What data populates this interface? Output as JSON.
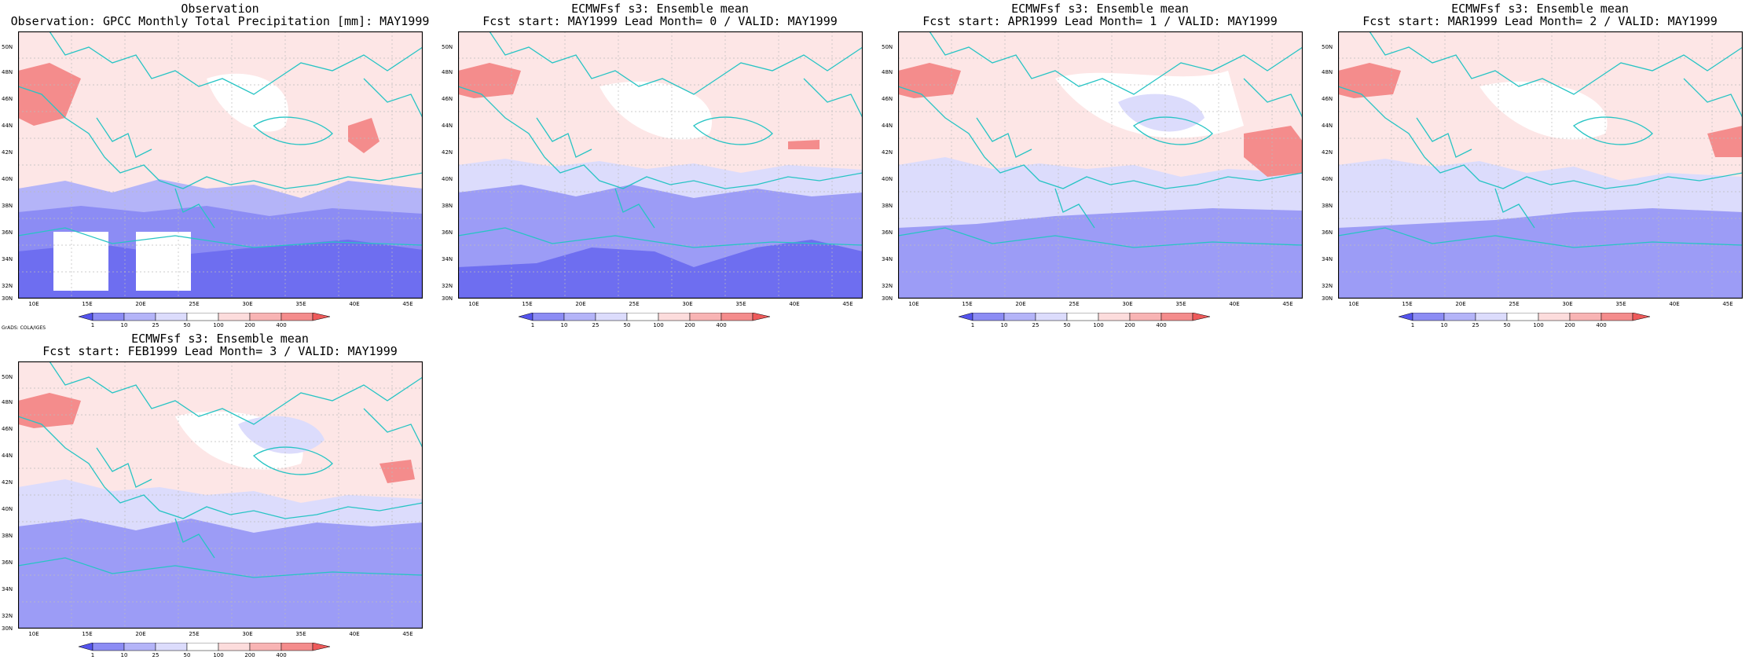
{
  "panels": [
    {
      "title1": "Observation",
      "title2": "Observation: GPCC Monthly Total Precipitation [mm]: MAY1999"
    },
    {
      "title1": "ECMWFsf s3: Ensemble mean",
      "title2": "Fcst start: MAY1999  Lead Month= 0 / VALID: MAY1999"
    },
    {
      "title1": "ECMWFsf s3: Ensemble mean",
      "title2": "Fcst start: APR1999  Lead Month= 1 / VALID: MAY1999"
    },
    {
      "title1": "ECMWFsf s3: Ensemble mean",
      "title2": "Fcst start: MAR1999  Lead Month= 2 / VALID: MAY1999"
    },
    {
      "title1": "ECMWFsf s3: Ensemble mean",
      "title2": "Fcst start: FEB1999  Lead Month= 3 / VALID: MAY1999"
    }
  ],
  "lat_labels": [
    "50N",
    "48N",
    "46N",
    "44N",
    "42N",
    "40N",
    "38N",
    "36N",
    "34N",
    "32N",
    "30N"
  ],
  "lon_labels": [
    "10E",
    "15E",
    "20E",
    "25E",
    "30E",
    "35E",
    "40E",
    "45E"
  ],
  "colorbar": {
    "ticks": [
      "1",
      "10",
      "25",
      "50",
      "100",
      "200",
      "400"
    ],
    "colors": [
      "#5555ee",
      "#8c8cf4",
      "#b4b4f8",
      "#dcdcfc",
      "#ffffff",
      "#fcdcdc",
      "#f8b4b4",
      "#f48c8c",
      "#ee5a5a"
    ]
  },
  "credit": "GrADS: COLA/IGES",
  "colors": {
    "coast": "#27c4c4",
    "frame": "#000000"
  }
}
